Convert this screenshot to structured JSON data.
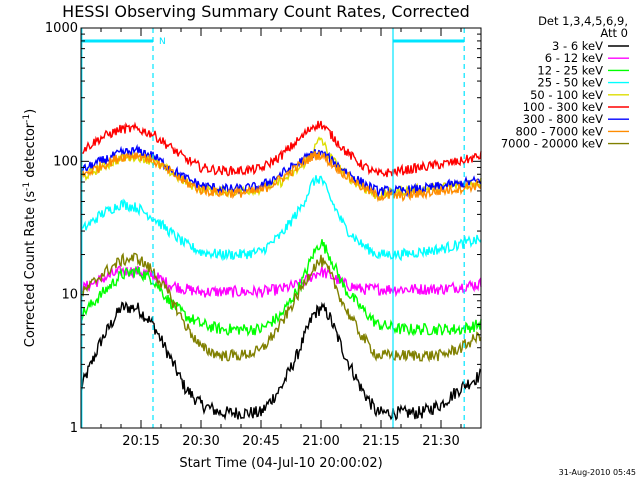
{
  "chart_data": {
    "type": "line",
    "title": "HESSI Observing Summary Count Rates, Corrected",
    "xlabel": "Start Time (04-Jul-10 20:00:02)",
    "ylabel_prefix": "Corrected Count Rate (s",
    "ylabel_sup1": "-1",
    "ylabel_mid": " detector",
    "ylabel_sup2": "-1",
    "ylabel_suffix": ")",
    "y_scale": "log",
    "ylim": [
      1,
      1000
    ],
    "xlim_minutes": [
      0,
      100
    ],
    "x_ticks": [
      {
        "label": "20:15",
        "minute": 15
      },
      {
        "label": "20:30",
        "minute": 30
      },
      {
        "label": "20:45",
        "minute": 45
      },
      {
        "label": "21:00",
        "minute": 60
      },
      {
        "label": "21:15",
        "minute": 75
      },
      {
        "label": "21:30",
        "minute": 90
      }
    ],
    "y_ticks": [
      {
        "label": "1",
        "value": 1
      },
      {
        "label": "10",
        "value": 10
      },
      {
        "label": "100",
        "value": 100
      },
      {
        "label": "1000",
        "value": 1000
      }
    ],
    "legend_header": [
      "Det 1,3,4,5,6,9,",
      "Att 0"
    ],
    "legend_position": "right",
    "series": [
      {
        "name": "3 - 6 keV",
        "color": "#000000",
        "minute": [
          0,
          5,
          10,
          14,
          18,
          22,
          26,
          30,
          35,
          40,
          45,
          50,
          54,
          58,
          60,
          62,
          66,
          70,
          74,
          80,
          85,
          90,
          95,
          100
        ],
        "values": [
          2,
          4.5,
          8,
          8,
          6,
          3.5,
          2,
          1.5,
          1.3,
          1.3,
          1.3,
          2,
          3.5,
          7,
          8,
          7,
          3.5,
          2,
          1.3,
          1.3,
          1.3,
          1.5,
          2,
          2.5
        ]
      },
      {
        "name": "6 - 12 keV",
        "color": "#ff00ff",
        "minute": [
          0,
          5,
          10,
          14,
          18,
          22,
          26,
          30,
          35,
          40,
          45,
          50,
          55,
          58,
          60,
          62,
          66,
          70,
          74,
          80,
          85,
          90,
          95,
          100
        ],
        "values": [
          11,
          13,
          15,
          15,
          14,
          12,
          11,
          10.5,
          10.5,
          10.5,
          10.5,
          11,
          12,
          14,
          15,
          14,
          12,
          11,
          11,
          11,
          11,
          11,
          11.5,
          12
        ]
      },
      {
        "name": "12 - 25 keV",
        "color": "#00ff00",
        "minute": [
          0,
          5,
          10,
          14,
          18,
          22,
          26,
          30,
          35,
          40,
          45,
          50,
          55,
          58,
          60,
          62,
          66,
          70,
          74,
          80,
          85,
          90,
          95,
          100
        ],
        "values": [
          7,
          10,
          14,
          15,
          13,
          9,
          7,
          6,
          5.5,
          5.5,
          5.5,
          7,
          12,
          20,
          25,
          20,
          11,
          8,
          6,
          5.5,
          5.5,
          5.5,
          5.5,
          6
        ]
      },
      {
        "name": "25 - 50 keV",
        "color": "#00ffff",
        "minute": [
          0,
          5,
          10,
          14,
          18,
          22,
          26,
          30,
          35,
          40,
          45,
          50,
          55,
          58,
          60,
          62,
          66,
          70,
          74,
          80,
          85,
          90,
          95,
          100
        ],
        "values": [
          30,
          40,
          48,
          45,
          38,
          30,
          24,
          21,
          20,
          20,
          21,
          28,
          45,
          70,
          75,
          55,
          32,
          24,
          20,
          20,
          21,
          22,
          24,
          26
        ]
      },
      {
        "name": "50 - 100 keV",
        "color": "#dddd00",
        "minute": [
          0,
          5,
          10,
          14,
          18,
          22,
          26,
          30,
          35,
          40,
          45,
          50,
          55,
          58,
          60,
          62,
          66,
          70,
          74,
          80,
          85,
          90,
          95,
          100
        ],
        "values": [
          75,
          90,
          105,
          110,
          100,
          85,
          70,
          62,
          60,
          60,
          62,
          70,
          90,
          120,
          150,
          110,
          80,
          65,
          55,
          60,
          62,
          64,
          66,
          70
        ]
      },
      {
        "name": "100 - 300 keV",
        "color": "#ff0000",
        "minute": [
          0,
          5,
          10,
          14,
          18,
          22,
          26,
          30,
          35,
          40,
          45,
          50,
          55,
          58,
          60,
          62,
          66,
          70,
          74,
          80,
          85,
          90,
          95,
          100
        ],
        "values": [
          120,
          150,
          175,
          175,
          160,
          130,
          105,
          90,
          85,
          85,
          88,
          110,
          150,
          185,
          190,
          165,
          120,
          95,
          80,
          85,
          90,
          95,
          100,
          110
        ]
      },
      {
        "name": "300 - 800 keV",
        "color": "#0000ff",
        "minute": [
          0,
          5,
          10,
          14,
          18,
          22,
          26,
          30,
          35,
          40,
          45,
          50,
          55,
          58,
          60,
          62,
          66,
          70,
          74,
          80,
          85,
          90,
          95,
          100
        ],
        "values": [
          85,
          100,
          115,
          120,
          110,
          90,
          75,
          66,
          62,
          62,
          65,
          80,
          100,
          115,
          115,
          105,
          85,
          70,
          60,
          60,
          62,
          65,
          68,
          72
        ]
      },
      {
        "name": "800 - 7000 keV",
        "color": "#ff8c00",
        "minute": [
          0,
          5,
          10,
          14,
          18,
          22,
          26,
          30,
          35,
          40,
          45,
          50,
          55,
          58,
          60,
          62,
          66,
          70,
          74,
          80,
          85,
          90,
          95,
          100
        ],
        "values": [
          78,
          92,
          108,
          112,
          102,
          84,
          70,
          61,
          58,
          58,
          60,
          74,
          95,
          110,
          112,
          100,
          80,
          65,
          55,
          55,
          57,
          60,
          63,
          67
        ]
      },
      {
        "name": "7000 - 20000 keV",
        "color": "#808000",
        "minute": [
          0,
          5,
          10,
          14,
          18,
          22,
          26,
          30,
          35,
          40,
          45,
          50,
          55,
          58,
          60,
          62,
          66,
          70,
          74,
          80,
          85,
          90,
          95,
          100
        ],
        "values": [
          10,
          14,
          18,
          19,
          15,
          10,
          6,
          4,
          3.5,
          3.5,
          3.8,
          6,
          11,
          16,
          18,
          15,
          8,
          5,
          3.5,
          3.5,
          3.5,
          3.5,
          4,
          5
        ]
      }
    ],
    "annotation_flag": "N",
    "timestamp": "31-Aug-2010 05:45"
  }
}
